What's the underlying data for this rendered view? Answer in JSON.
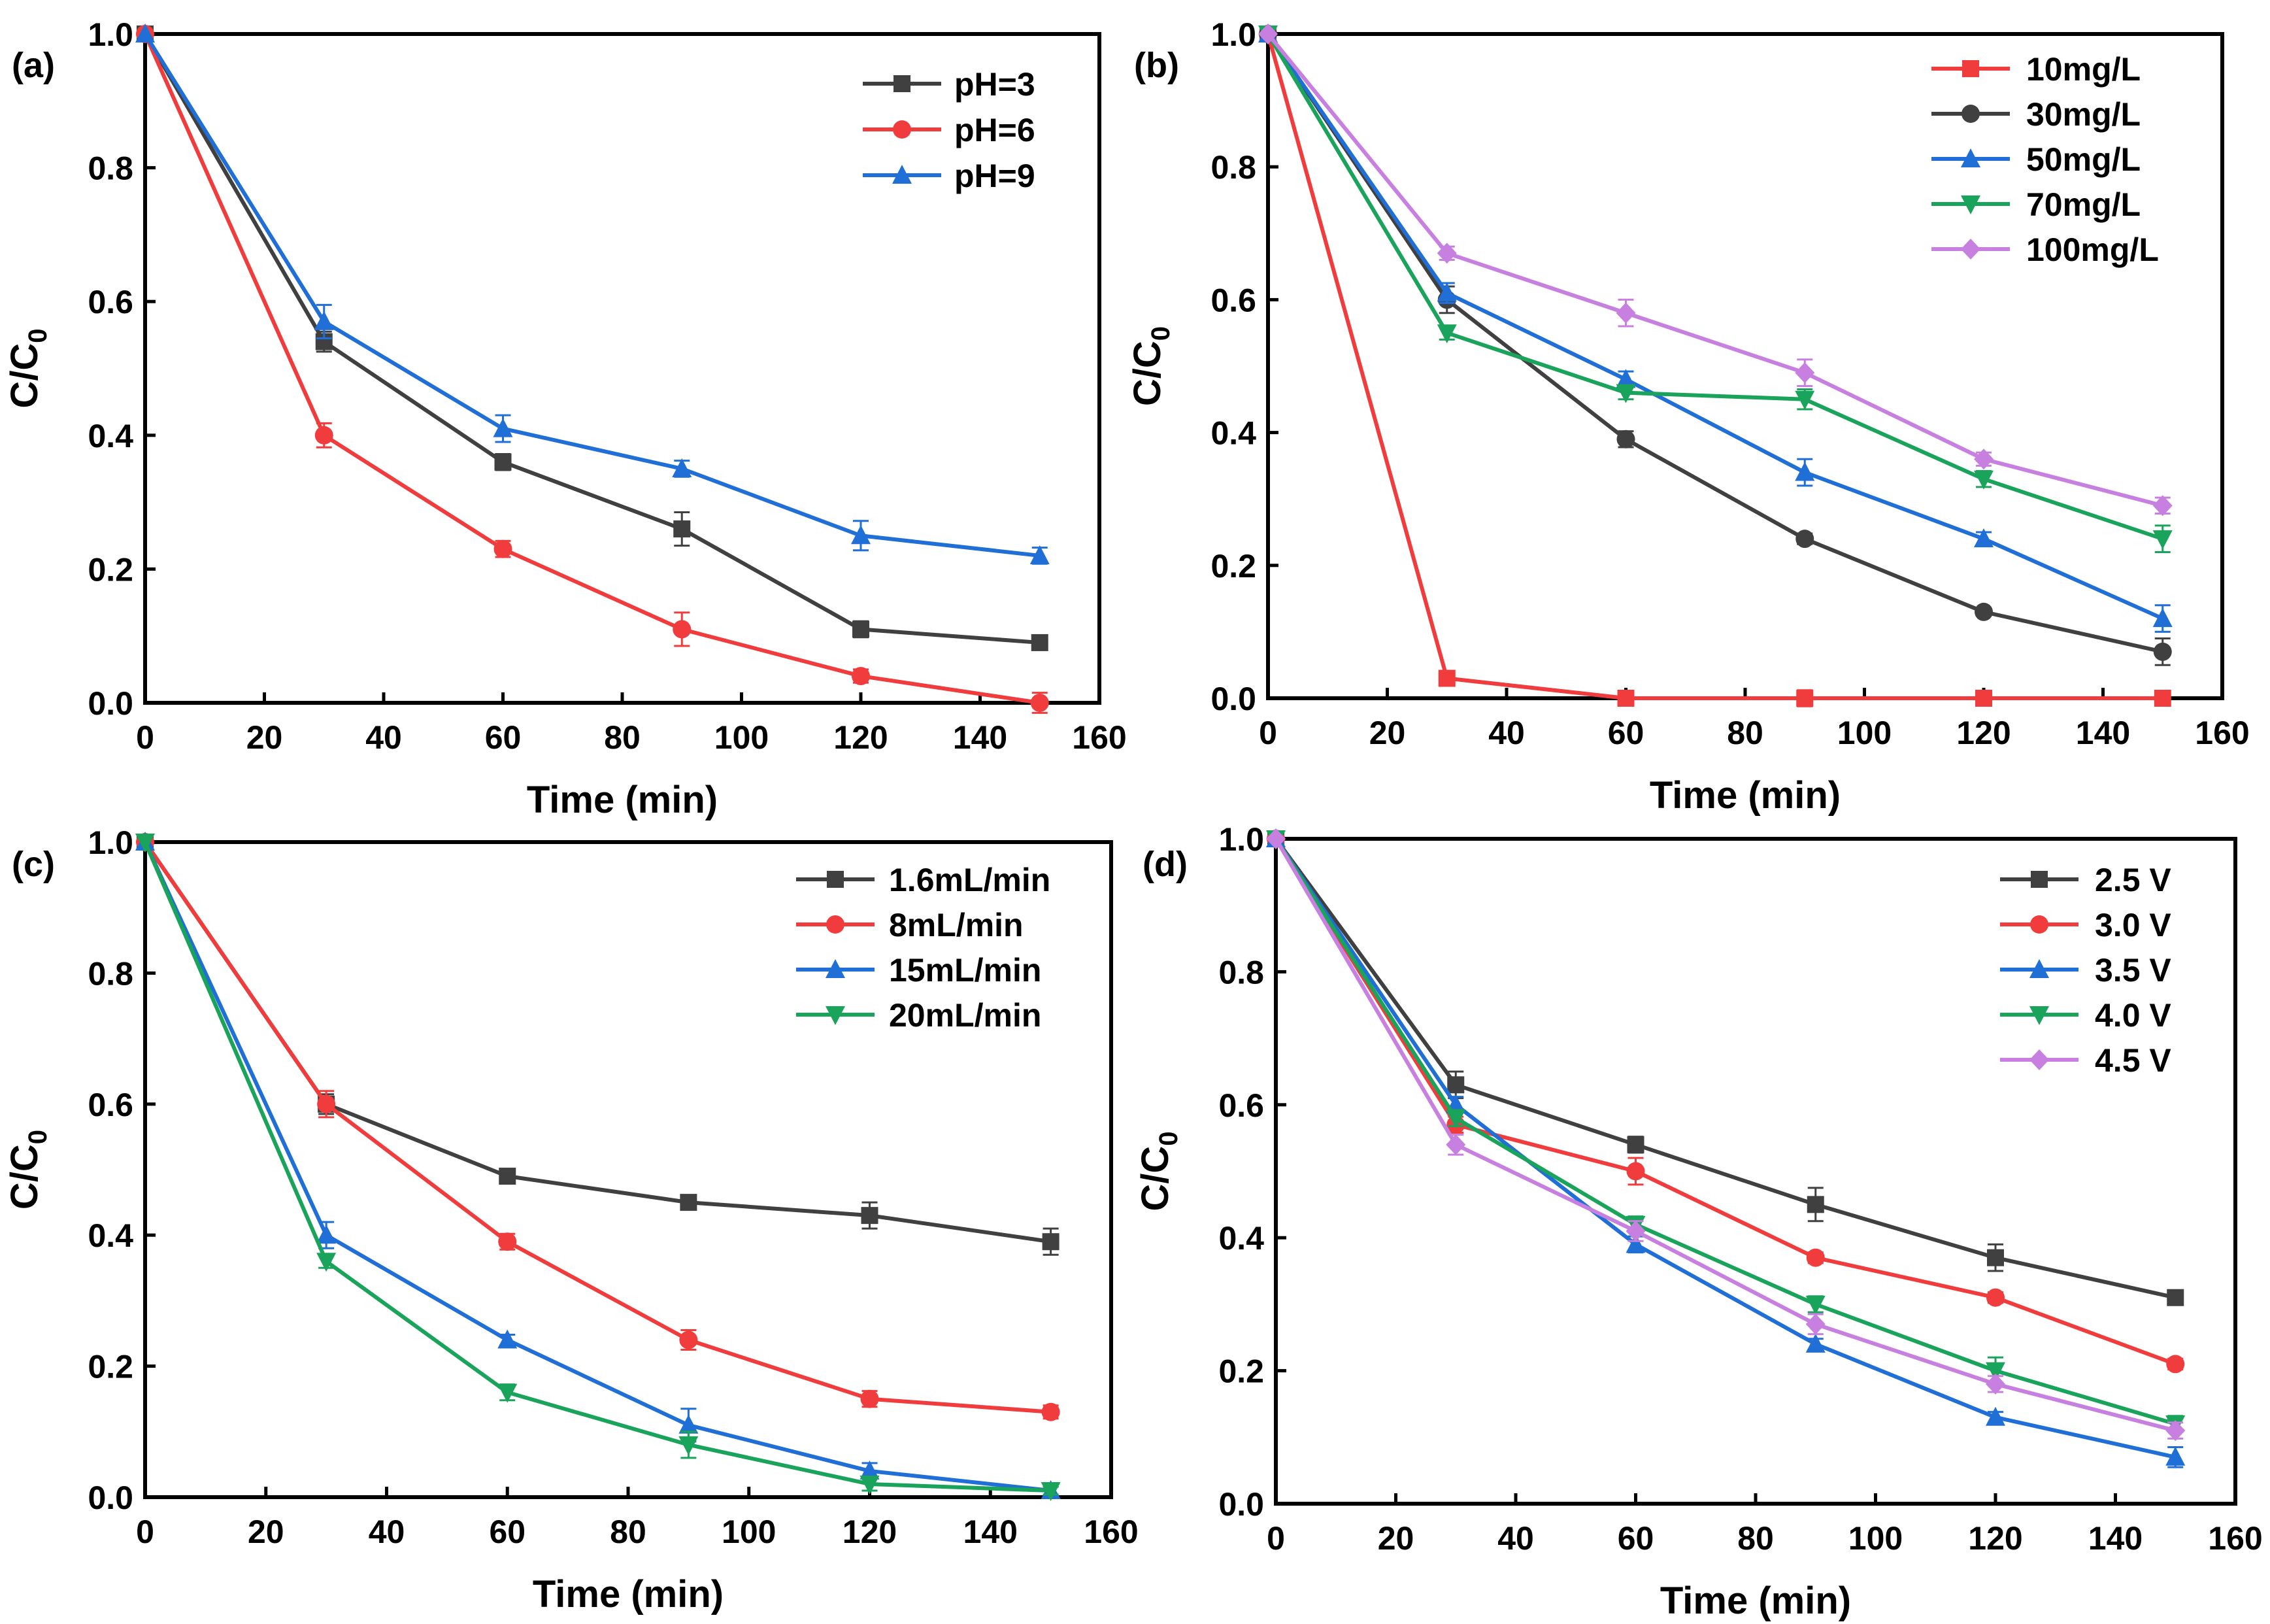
{
  "chart_data": [
    {
      "type": "line",
      "panel_label": "(a)",
      "xlabel": "Time (min)",
      "ylabel_main": "C/C",
      "ylabel_sub": "0",
      "xlim": [
        0,
        160
      ],
      "ylim": [
        0,
        1.0
      ],
      "x_ticks": [
        "0",
        "20",
        "40",
        "60",
        "80",
        "100",
        "120",
        "140",
        "160"
      ],
      "y_ticks": [
        "0.0",
        "0.2",
        "0.4",
        "0.6",
        "0.8",
        "1.0"
      ],
      "x": [
        0,
        30,
        60,
        90,
        120,
        150
      ],
      "legend_position": "top-right",
      "series": [
        {
          "name": "pH=3",
          "color": "#404040",
          "marker": "square",
          "values": [
            1.0,
            0.54,
            0.36,
            0.26,
            0.11,
            0.09
          ],
          "errors": [
            0,
            0.015,
            0.012,
            0.025,
            0.012,
            0.008
          ]
        },
        {
          "name": "pH=6",
          "color": "#f03c3c",
          "marker": "circle",
          "values": [
            1.0,
            0.4,
            0.23,
            0.11,
            0.04,
            0.0
          ],
          "errors": [
            0,
            0.018,
            0.012,
            0.025,
            0.01,
            0.015
          ]
        },
        {
          "name": "pH=9",
          "color": "#1f6fd6",
          "marker": "triangle-up",
          "values": [
            1.0,
            0.57,
            0.41,
            0.35,
            0.25,
            0.22
          ],
          "errors": [
            0,
            0.025,
            0.02,
            0.012,
            0.022,
            0.012
          ]
        }
      ]
    },
    {
      "type": "line",
      "panel_label": "(b)",
      "xlabel": "Time (min)",
      "ylabel_main": "C/C",
      "ylabel_sub": "0",
      "xlim": [
        0,
        160
      ],
      "ylim": [
        0,
        1.0
      ],
      "x_ticks": [
        "0",
        "20",
        "40",
        "60",
        "80",
        "100",
        "120",
        "140",
        "160"
      ],
      "y_ticks": [
        "0.0",
        "0.2",
        "0.4",
        "0.6",
        "0.8",
        "1.0"
      ],
      "x": [
        0,
        30,
        60,
        90,
        120,
        150
      ],
      "legend_position": "top-right",
      "series": [
        {
          "name": "10mg/L",
          "color": "#f03c3c",
          "marker": "square",
          "values": [
            1.0,
            0.03,
            0.0,
            0.0,
            0.0,
            0.0
          ],
          "errors": [
            0,
            0.005,
            0.003,
            0.012,
            0.004,
            0.004
          ]
        },
        {
          "name": "30mg/L",
          "color": "#404040",
          "marker": "circle",
          "values": [
            1.0,
            0.6,
            0.39,
            0.24,
            0.13,
            0.07
          ],
          "errors": [
            0,
            0.02,
            0.012,
            0.008,
            0.006,
            0.02
          ]
        },
        {
          "name": "50mg/L",
          "color": "#1f6fd6",
          "marker": "triangle-up",
          "values": [
            1.0,
            0.61,
            0.48,
            0.34,
            0.24,
            0.12
          ],
          "errors": [
            0,
            0.015,
            0.012,
            0.02,
            0.01,
            0.02
          ]
        },
        {
          "name": "70mg/L",
          "color": "#1aa35a",
          "marker": "triangle-down",
          "values": [
            1.0,
            0.55,
            0.46,
            0.45,
            0.33,
            0.24
          ],
          "errors": [
            0,
            0.01,
            0.01,
            0.015,
            0.012,
            0.02
          ]
        },
        {
          "name": "100mg/L",
          "color": "#c77fe0",
          "marker": "diamond",
          "values": [
            1.0,
            0.67,
            0.58,
            0.49,
            0.36,
            0.29
          ],
          "errors": [
            0,
            0.01,
            0.02,
            0.02,
            0.01,
            0.012
          ]
        }
      ]
    },
    {
      "type": "line",
      "panel_label": "(c)",
      "xlabel": "Time (min)",
      "ylabel_main": "C/C",
      "ylabel_sub": "0",
      "xlim": [
        0,
        160
      ],
      "ylim": [
        0,
        1.0
      ],
      "x_ticks": [
        "0",
        "20",
        "40",
        "60",
        "80",
        "100",
        "120",
        "140",
        "160"
      ],
      "y_ticks": [
        "0.0",
        "0.2",
        "0.4",
        "0.6",
        "0.8",
        "1.0"
      ],
      "x": [
        0,
        30,
        60,
        90,
        120,
        150
      ],
      "legend_position": "top-right",
      "series": [
        {
          "name": "1.6mL/min",
          "color": "#404040",
          "marker": "square",
          "values": [
            1.0,
            0.6,
            0.49,
            0.45,
            0.43,
            0.39
          ],
          "errors": [
            0,
            0.015,
            0.01,
            0.008,
            0.02,
            0.02
          ]
        },
        {
          "name": "8mL/min",
          "color": "#f03c3c",
          "marker": "circle",
          "values": [
            1.0,
            0.6,
            0.39,
            0.24,
            0.15,
            0.13
          ],
          "errors": [
            0,
            0.02,
            0.012,
            0.015,
            0.012,
            0.01
          ]
        },
        {
          "name": "15mL/min",
          "color": "#1f6fd6",
          "marker": "triangle-up",
          "values": [
            1.0,
            0.4,
            0.24,
            0.11,
            0.04,
            0.01
          ],
          "errors": [
            0,
            0.02,
            0.008,
            0.025,
            0.012,
            0.006
          ]
        },
        {
          "name": "20mL/min",
          "color": "#1aa35a",
          "marker": "triangle-down",
          "values": [
            1.0,
            0.36,
            0.16,
            0.08,
            0.02,
            0.01
          ],
          "errors": [
            0,
            0.01,
            0.012,
            0.02,
            0.01,
            0.006
          ]
        }
      ]
    },
    {
      "type": "line",
      "panel_label": "(d)",
      "xlabel": "Time (min)",
      "ylabel_main": "C/C",
      "ylabel_sub": "0",
      "xlim": [
        0,
        160
      ],
      "ylim": [
        0,
        1.0
      ],
      "x_ticks": [
        "0",
        "20",
        "40",
        "60",
        "80",
        "100",
        "120",
        "140",
        "160"
      ],
      "y_ticks": [
        "0.0",
        "0.2",
        "0.4",
        "0.6",
        "0.8",
        "1.0"
      ],
      "x": [
        0,
        30,
        60,
        90,
        120,
        150
      ],
      "legend_position": "top-right",
      "series": [
        {
          "name": "2.5 V",
          "color": "#404040",
          "marker": "square",
          "values": [
            1.0,
            0.63,
            0.54,
            0.45,
            0.37,
            0.31
          ],
          "errors": [
            0,
            0.02,
            0.012,
            0.025,
            0.02,
            0.008
          ]
        },
        {
          "name": "3.0 V",
          "color": "#f03c3c",
          "marker": "circle",
          "values": [
            1.0,
            0.57,
            0.5,
            0.37,
            0.31,
            0.21
          ],
          "errors": [
            0,
            0.012,
            0.02,
            0.008,
            0.008,
            0.008
          ]
        },
        {
          "name": "3.5 V",
          "color": "#1f6fd6",
          "marker": "triangle-up",
          "values": [
            1.0,
            0.6,
            0.39,
            0.24,
            0.13,
            0.07
          ],
          "errors": [
            0,
            0.012,
            0.012,
            0.008,
            0.008,
            0.015
          ]
        },
        {
          "name": "4.0 V",
          "color": "#1aa35a",
          "marker": "triangle-down",
          "values": [
            1.0,
            0.58,
            0.42,
            0.3,
            0.2,
            0.12
          ],
          "errors": [
            0,
            0.012,
            0.012,
            0.012,
            0.02,
            0.012
          ]
        },
        {
          "name": "4.5 V",
          "color": "#c77fe0",
          "marker": "diamond",
          "values": [
            1.0,
            0.54,
            0.41,
            0.27,
            0.18,
            0.11
          ],
          "errors": [
            0,
            0.015,
            0.015,
            0.015,
            0.012,
            0.012
          ]
        }
      ]
    }
  ]
}
